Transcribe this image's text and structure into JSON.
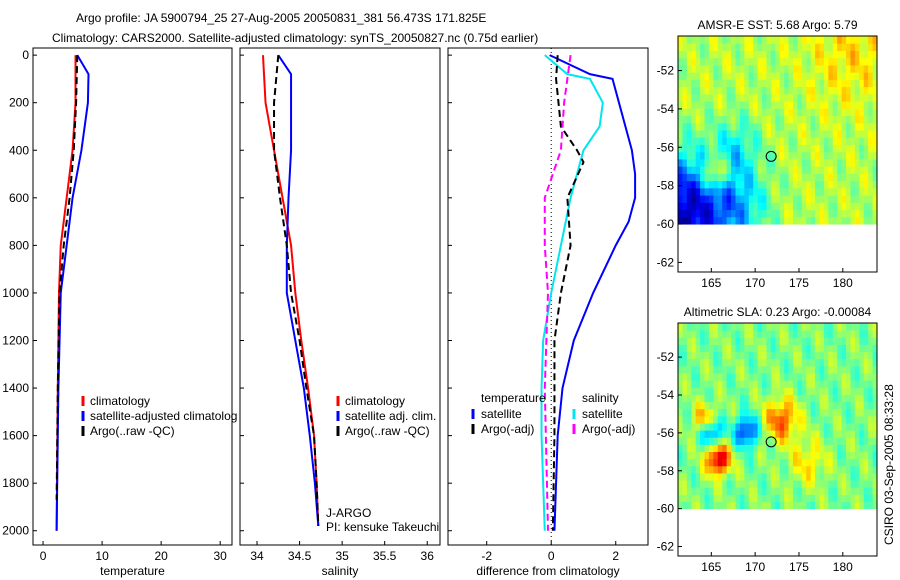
{
  "title_line1": "Argo profile: JA 5900794_25 27-Aug-2005 20050831_381 56.473S 171.825E",
  "title_line2": "Climatology: CARS2000. Satellite-adjusted climatology: synTS_20050827.nc (0.75d earlier)",
  "side_stamp": "CSIRO 03-Sep-2005 08:33:28",
  "chart_data": [
    {
      "type": "line",
      "id": "temp",
      "xlabel": "temperature",
      "ylabel": "",
      "xlim": [
        -1.7,
        32
      ],
      "ylim": [
        2060,
        0
      ],
      "xticks": [
        0,
        10,
        20,
        30
      ],
      "yticks": [
        0,
        200,
        400,
        600,
        800,
        1000,
        1200,
        1400,
        1600,
        1800,
        2000
      ],
      "series": [
        {
          "name": "climatology",
          "color": "#ff0000",
          "dash": false,
          "depth": [
            0,
            200,
            400,
            600,
            800,
            1000,
            1400,
            2000
          ],
          "values": [
            5.5,
            5.5,
            5.0,
            4.0,
            3.0,
            2.7,
            2.5,
            2.3
          ]
        },
        {
          "name": "satellite-adjusted climatology",
          "color": "#0000ff",
          "dash": false,
          "depth": [
            0,
            80,
            200,
            400,
            600,
            800,
            1000,
            1400,
            2000
          ],
          "values": [
            5.8,
            7.7,
            7.6,
            6.5,
            5.0,
            4.0,
            3.0,
            2.6,
            2.3
          ]
        },
        {
          "name": "Argo(..raw -QC)",
          "color": "#000000",
          "dash": true,
          "depth": [
            0,
            200,
            400,
            600,
            800,
            1000,
            1400,
            1870
          ],
          "values": [
            5.8,
            5.6,
            5.2,
            4.5,
            3.5,
            2.8,
            2.5,
            2.3
          ]
        }
      ],
      "legend": [
        "climatology",
        "satellite-adjusted climatolog",
        "Argo(..raw -QC)"
      ]
    },
    {
      "type": "line",
      "id": "sal",
      "xlabel": "salinity",
      "xlim": [
        33.8,
        36.15
      ],
      "ylim": [
        2060,
        0
      ],
      "xticks": [
        34,
        34.5,
        35,
        35.5,
        36
      ],
      "series": [
        {
          "name": "climatology",
          "color": "#ff0000",
          "dash": false,
          "depth": [
            0,
            200,
            400,
            600,
            800,
            1000,
            1200,
            1400,
            1600,
            1800,
            1980
          ],
          "values": [
            34.07,
            34.1,
            34.2,
            34.3,
            34.4,
            34.45,
            34.52,
            34.6,
            34.67,
            34.7,
            34.72
          ]
        },
        {
          "name": "satellite adj. clim.",
          "color": "#0000ff",
          "dash": false,
          "depth": [
            0,
            80,
            200,
            400,
            600,
            800,
            1000,
            1200,
            1400,
            1600,
            1800,
            1980
          ],
          "values": [
            34.25,
            34.4,
            34.4,
            34.4,
            34.37,
            34.35,
            34.35,
            34.45,
            34.55,
            34.62,
            34.68,
            34.72
          ]
        },
        {
          "name": "Argo(..raw -QC)",
          "color": "#000000",
          "dash": true,
          "depth": [
            0,
            200,
            400,
            600,
            800,
            1000,
            1200,
            1400,
            1600,
            1800,
            1980
          ],
          "values": [
            34.25,
            34.2,
            34.2,
            34.27,
            34.35,
            34.4,
            34.5,
            34.58,
            34.67,
            34.7,
            34.72
          ]
        }
      ],
      "legend": [
        "climatology",
        "satellite adj. clim.",
        "Argo(..raw -QC)"
      ],
      "annotations": [
        "J-ARGO",
        "PI: kensuke Takeuchi"
      ]
    },
    {
      "type": "line",
      "id": "diff",
      "xlabel": "difference from climatology",
      "xlim": [
        -3.2,
        3.0
      ],
      "ylim": [
        2060,
        0
      ],
      "xticks": [
        -2,
        0,
        2
      ],
      "series": [
        {
          "name": "temperature satellite",
          "color": "#0000ff",
          "dash": false,
          "depth": [
            0,
            80,
            100,
            200,
            400,
            500,
            600,
            700,
            800,
            1000,
            1200,
            1400,
            1600,
            2000
          ],
          "values": [
            -0.05,
            1.2,
            1.9,
            2.1,
            2.5,
            2.6,
            2.6,
            2.4,
            2.0,
            1.3,
            0.7,
            0.35,
            0.2,
            0.1
          ]
        },
        {
          "name": "salinity satellite",
          "color": "#00e5ee",
          "dash": false,
          "depth": [
            0,
            80,
            100,
            200,
            300,
            400,
            600,
            800,
            1000,
            1200,
            1400,
            1600,
            1800,
            2000
          ],
          "values": [
            -0.2,
            0.5,
            1.2,
            1.6,
            1.5,
            1.0,
            0.6,
            0.3,
            0.0,
            -0.25,
            -0.3,
            -0.3,
            -0.25,
            -0.2
          ]
        },
        {
          "name": "temperature Argo(-adj)",
          "color": "#000000",
          "dash": true,
          "depth": [
            0,
            100,
            300,
            400,
            450,
            600,
            800,
            1000,
            1200,
            1600,
            2000
          ],
          "values": [
            0.2,
            0.15,
            0.3,
            0.8,
            1.0,
            0.5,
            0.6,
            0.3,
            0.1,
            0.1,
            0.05
          ]
        },
        {
          "name": "salinity Argo(-adj)",
          "color": "#ff00ff",
          "dash": true,
          "depth": [
            0,
            100,
            200,
            400,
            600,
            800,
            1000,
            1400,
            2000
          ],
          "values": [
            0.6,
            0.5,
            0.4,
            0.3,
            -0.2,
            -0.2,
            -0.1,
            -0.2,
            -0.1
          ]
        }
      ],
      "legend_headers": [
        "temperature",
        "salinity"
      ],
      "legend": [
        "satellite",
        "Argo(-adj)",
        "satellite",
        "Argo(-adj)"
      ]
    },
    {
      "type": "heatmap",
      "id": "sst",
      "title": "AMSR-E SST: 5.68 Argo: 5.79",
      "xlim": [
        161.2,
        183.9
      ],
      "ylim": [
        -62.5,
        -50.2
      ],
      "data_lat": [
        -60,
        -50.2
      ],
      "xticks": [
        165,
        170,
        175,
        180
      ],
      "yticks": [
        -52,
        -54,
        -56,
        -58,
        -60,
        -62
      ],
      "base": 0.55,
      "features": [
        [
          161.5,
          -59.5,
          -0.5,
          3
        ],
        [
          168,
          -59,
          -0.2,
          2
        ],
        [
          165.5,
          -57.3,
          0.28,
          0.8
        ],
        [
          168,
          -56,
          -0.15,
          1.5
        ],
        [
          181,
          -51,
          0.1,
          3
        ]
      ],
      "marker": [
        171.825,
        -56.473
      ]
    },
    {
      "type": "heatmap",
      "id": "sla",
      "title": "Altimetric SLA: 0.23 Argo: -0.00084",
      "xlim": [
        161.2,
        183.9
      ],
      "ylim": [
        -62.5,
        -50.2
      ],
      "data_lat": [
        -60,
        -50.2
      ],
      "xticks": [
        165,
        170,
        175,
        180
      ],
      "yticks": [
        -52,
        -54,
        -56,
        -58,
        -60,
        -62
      ],
      "base": 0.5,
      "features": [
        [
          165,
          -55.9,
          -0.35,
          0.7
        ],
        [
          169,
          -55.9,
          -0.35,
          0.8
        ],
        [
          165.8,
          -57.4,
          0.45,
          0.8
        ],
        [
          173,
          -55.3,
          0.3,
          1.1
        ],
        [
          164.3,
          -55.3,
          0.25,
          0.8
        ],
        [
          176,
          -57.5,
          0.15,
          1.2
        ]
      ],
      "marker": [
        171.825,
        -56.473
      ]
    }
  ]
}
